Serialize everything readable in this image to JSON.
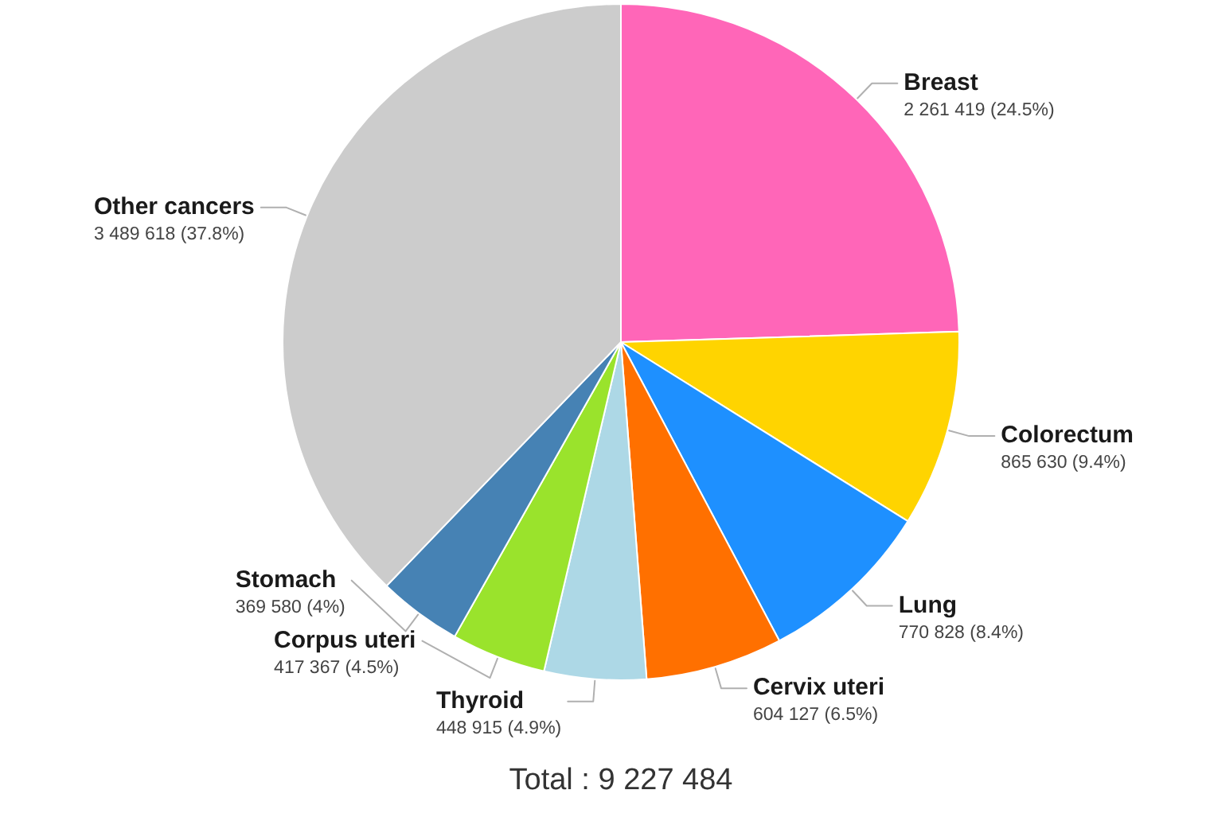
{
  "chart_data": {
    "type": "pie",
    "categories": [
      "Breast",
      "Colorectum",
      "Lung",
      "Cervix uteri",
      "Thyroid",
      "Corpus uteri",
      "Stomach",
      "Other cancers"
    ],
    "values": [
      2261419,
      865630,
      770828,
      604127,
      448915,
      417367,
      369580,
      3489618
    ],
    "colors": [
      "#ff66b8",
      "#ffd400",
      "#1e90ff",
      "#ff7000",
      "#add8e6",
      "#9ae32c",
      "#4682b4",
      "#cccccc"
    ],
    "value_labels": [
      "2 261 419 (24.5%)",
      "865 630 (9.4%)",
      "770 828 (8.4%)",
      "604 127 (6.5%)",
      "448 915 (4.9%)",
      "417 367 (4.5%)",
      "369 580 (4%)",
      "3 489 618 (37.8%)"
    ],
    "annotations": [
      "Total : 9 227 484"
    ]
  }
}
